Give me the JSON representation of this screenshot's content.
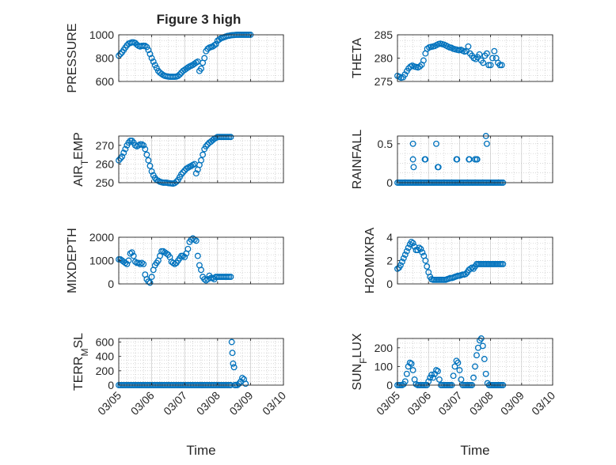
{
  "figure": {
    "title": "Figure 3 high",
    "accent_color": "#0072BD",
    "axis_color": "#262626",
    "grid_color": "#bdbdbd"
  },
  "chart_data": [
    {
      "id": "pressure",
      "type": "scatter",
      "ylabel": "PRESSURE",
      "ylim": [
        600,
        1000
      ],
      "yticks": [
        600,
        800,
        1000
      ],
      "xlim": [
        0,
        5
      ],
      "xticklabels": [],
      "grid": true,
      "x": [
        0.0,
        0.05,
        0.1,
        0.15,
        0.2,
        0.25,
        0.3,
        0.35,
        0.4,
        0.45,
        0.5,
        0.55,
        0.6,
        0.65,
        0.7,
        0.75,
        0.8,
        0.85,
        0.9,
        0.95,
        1.0,
        1.05,
        1.1,
        1.15,
        1.2,
        1.25,
        1.3,
        1.35,
        1.4,
        1.45,
        1.5,
        1.55,
        1.6,
        1.65,
        1.7,
        1.75,
        1.8,
        1.85,
        1.9,
        1.95,
        2.0,
        2.05,
        2.1,
        2.15,
        2.2,
        2.25,
        2.3,
        2.35,
        2.4,
        2.45,
        2.5,
        2.55,
        2.6,
        2.65,
        2.7,
        2.75,
        2.8,
        2.85,
        2.9,
        2.95,
        3.0,
        3.05,
        3.1,
        3.15,
        3.2,
        3.25,
        3.3,
        3.35,
        3.4,
        3.45,
        3.5,
        3.55,
        3.6,
        3.65,
        3.7,
        3.75,
        3.8,
        3.85,
        3.9,
        3.95,
        4.0
      ],
      "y": [
        820,
        835,
        850,
        870,
        890,
        910,
        925,
        930,
        935,
        935,
        930,
        915,
        905,
        900,
        905,
        905,
        905,
        895,
        870,
        835,
        800,
        770,
        740,
        715,
        690,
        675,
        665,
        655,
        648,
        645,
        642,
        640,
        640,
        640,
        640,
        642,
        648,
        660,
        675,
        690,
        700,
        710,
        720,
        728,
        735,
        742,
        752,
        762,
        770,
        690,
        710,
        760,
        800,
        860,
        880,
        890,
        895,
        900,
        910,
        920,
        950,
        960,
        970,
        975,
        980,
        985,
        990,
        992,
        995,
        997,
        998,
        999,
        1000,
        1000,
        1000,
        1000,
        1000,
        1000,
        1000,
        1000,
        1000
      ],
      "x_end": 3.4
    },
    {
      "id": "theta",
      "type": "scatter",
      "ylabel": "THETA",
      "ylim": [
        275,
        285
      ],
      "yticks": [
        275,
        280,
        285
      ],
      "xlim": [
        0,
        5
      ],
      "xticklabels": [],
      "grid": true,
      "x": [
        0.0,
        0.06,
        0.12,
        0.18,
        0.24,
        0.3,
        0.36,
        0.42,
        0.48,
        0.54,
        0.6,
        0.66,
        0.72,
        0.78,
        0.84,
        0.9,
        0.96,
        1.02,
        1.08,
        1.14,
        1.2,
        1.26,
        1.32,
        1.38,
        1.44,
        1.5,
        1.56,
        1.62,
        1.68,
        1.74,
        1.8,
        1.86,
        1.92,
        1.98,
        2.04,
        2.1,
        2.16,
        2.22,
        2.28,
        2.34,
        2.4,
        2.46,
        2.52,
        2.58,
        2.64,
        2.7,
        2.76,
        2.82,
        2.88,
        2.94,
        3.0,
        3.06,
        3.12,
        3.18,
        3.24,
        3.3,
        3.36
      ],
      "y": [
        276.2,
        276.0,
        275.8,
        275.9,
        276.5,
        277.2,
        277.8,
        278.2,
        278.4,
        278.2,
        278.1,
        278.0,
        278.2,
        278.6,
        279.5,
        281.0,
        282.0,
        282.3,
        282.4,
        282.5,
        282.6,
        282.8,
        283.0,
        283.1,
        283.0,
        282.9,
        282.7,
        282.5,
        282.3,
        282.2,
        282.0,
        281.9,
        281.8,
        281.7,
        281.8,
        281.6,
        281.4,
        281.5,
        282.5,
        281.0,
        280.5,
        280.0,
        279.8,
        280.2,
        280.8,
        279.5,
        279.0,
        280.5,
        281.0,
        278.5,
        278.5,
        280.0,
        281.5,
        280.0,
        279.0,
        278.5,
        278.5
      ],
      "x_end": 3.4
    },
    {
      "id": "air_temp",
      "type": "scatter",
      "ylabel_main": "AIR",
      "ylabel_sub": "T",
      "ylabel_rest": "EMP",
      "ylim": [
        250,
        275
      ],
      "yticks": [
        250,
        260,
        270
      ],
      "xlim": [
        0,
        5
      ],
      "xticklabels": [],
      "grid": true,
      "x": [
        0.0,
        0.05,
        0.1,
        0.15,
        0.2,
        0.25,
        0.3,
        0.35,
        0.4,
        0.45,
        0.5,
        0.55,
        0.6,
        0.65,
        0.7,
        0.75,
        0.8,
        0.85,
        0.9,
        0.95,
        1.0,
        1.05,
        1.1,
        1.15,
        1.2,
        1.25,
        1.3,
        1.35,
        1.4,
        1.45,
        1.5,
        1.55,
        1.6,
        1.65,
        1.7,
        1.75,
        1.8,
        1.85,
        1.9,
        1.95,
        2.0,
        2.05,
        2.1,
        2.15,
        2.2,
        2.25,
        2.3,
        2.35,
        2.4,
        2.45,
        2.5,
        2.55,
        2.6,
        2.65,
        2.7,
        2.75,
        2.8,
        2.85,
        2.9,
        2.95,
        3.0,
        3.05,
        3.1,
        3.15,
        3.2,
        3.25,
        3.3,
        3.35,
        3.4
      ],
      "y": [
        262,
        263,
        264,
        266,
        268,
        270,
        271.5,
        272.5,
        272.5,
        271.5,
        270,
        269.5,
        270,
        270.5,
        270.5,
        270,
        268,
        265,
        262,
        259,
        256,
        254,
        252.5,
        251.5,
        251,
        250.5,
        250.2,
        250,
        250,
        250,
        249.8,
        249.7,
        249.6,
        249.5,
        249.8,
        250.5,
        251.5,
        253,
        254.5,
        255.5,
        256.5,
        257.5,
        258,
        258.5,
        259,
        259.5,
        260,
        255,
        257,
        259.5,
        262,
        265,
        268,
        269.5,
        270.5,
        271.5,
        272,
        272.8,
        273.5,
        274,
        274.5,
        274.5,
        274.5,
        274.5,
        274.5,
        274.5,
        274.5,
        274.5,
        274.5
      ],
      "x_end": 3.4
    },
    {
      "id": "rainfall",
      "type": "scatter",
      "ylabel": "RAINFALL",
      "ylim": [
        0,
        0.6
      ],
      "yticks": [
        0,
        0.5
      ],
      "xlim": [
        0,
        5
      ],
      "xticklabels": [],
      "grid": true,
      "x": [
        0.0,
        0.05,
        0.1,
        0.15,
        0.2,
        0.25,
        0.3,
        0.35,
        0.4,
        0.45,
        0.5,
        0.55,
        0.6,
        0.65,
        0.7,
        0.75,
        0.8,
        0.85,
        0.9,
        0.95,
        1.0,
        1.05,
        1.1,
        1.15,
        1.2,
        1.25,
        1.3,
        1.35,
        1.4,
        1.45,
        1.5,
        1.55,
        1.6,
        1.65,
        1.7,
        1.75,
        1.8,
        1.85,
        1.9,
        1.95,
        2.0,
        2.05,
        2.1,
        2.15,
        2.2,
        2.25,
        2.3,
        2.35,
        2.4,
        2.45,
        2.5,
        2.55,
        2.6,
        2.65,
        2.7,
        2.75,
        2.8,
        2.85,
        2.9,
        2.95,
        3.0,
        3.05,
        3.1,
        3.15,
        3.2,
        3.25,
        3.3,
        3.35,
        3.4,
        0.5,
        0.5,
        0.52,
        0.9,
        0.88,
        1.25,
        1.3,
        1.32,
        1.9,
        1.92,
        2.3,
        2.32,
        2.5,
        2.55,
        2.57,
        2.85,
        2.88
      ],
      "y": [
        0,
        0,
        0,
        0,
        0,
        0,
        0,
        0,
        0,
        0,
        0,
        0,
        0,
        0,
        0,
        0,
        0,
        0,
        0,
        0,
        0,
        0,
        0,
        0,
        0,
        0,
        0,
        0,
        0,
        0,
        0,
        0,
        0,
        0,
        0,
        0,
        0,
        0,
        0,
        0,
        0,
        0,
        0,
        0,
        0,
        0,
        0,
        0,
        0,
        0,
        0,
        0,
        0,
        0,
        0,
        0,
        0,
        0,
        0,
        0,
        0,
        0,
        0,
        0,
        0,
        0,
        0,
        0,
        0,
        0.5,
        0.3,
        0.2,
        0.3,
        0.3,
        0.5,
        0.2,
        0.2,
        0.3,
        0.3,
        0.3,
        0.3,
        0.3,
        0.3,
        0.3,
        0.6,
        0.5
      ],
      "x_end": 3.4
    },
    {
      "id": "mixdepth",
      "type": "scatter",
      "ylabel": "MIXDEPTH",
      "ylim": [
        0,
        2000
      ],
      "yticks": [
        0,
        1000,
        2000
      ],
      "xlim": [
        0,
        5
      ],
      "xticklabels": [],
      "grid": true,
      "x": [
        0.0,
        0.05,
        0.1,
        0.15,
        0.2,
        0.25,
        0.3,
        0.35,
        0.4,
        0.45,
        0.5,
        0.55,
        0.6,
        0.65,
        0.7,
        0.75,
        0.8,
        0.85,
        0.9,
        0.95,
        1.0,
        1.05,
        1.1,
        1.15,
        1.2,
        1.25,
        1.3,
        1.35,
        1.4,
        1.45,
        1.5,
        1.55,
        1.6,
        1.65,
        1.7,
        1.75,
        1.8,
        1.85,
        1.9,
        1.95,
        2.0,
        2.05,
        2.1,
        2.15,
        2.2,
        2.25,
        2.3,
        2.35,
        2.4,
        2.45,
        2.5,
        2.55,
        2.6,
        2.65,
        2.7,
        2.75,
        2.8,
        2.85,
        2.9,
        2.95,
        3.0,
        3.05,
        3.1,
        3.15,
        3.2,
        3.25,
        3.3,
        3.35,
        3.4
      ],
      "y": [
        1050,
        1050,
        1000,
        950,
        900,
        850,
        1000,
        1300,
        1350,
        1200,
        950,
        900,
        900,
        850,
        900,
        850,
        400,
        200,
        100,
        50,
        300,
        600,
        800,
        900,
        1000,
        1200,
        1400,
        1400,
        1350,
        1300,
        1250,
        1150,
        950,
        900,
        850,
        900,
        1000,
        1100,
        1200,
        1200,
        1150,
        1300,
        1500,
        1800,
        1900,
        1950,
        1900,
        1850,
        1200,
        800,
        600,
        300,
        200,
        150,
        200,
        350,
        250,
        250,
        200,
        300,
        300,
        300,
        300,
        300,
        300,
        300,
        300,
        300,
        300
      ],
      "x_end": 3.4
    },
    {
      "id": "h2omixra",
      "type": "scatter",
      "ylabel": "H2OMIXRA",
      "ylim": [
        0,
        4
      ],
      "yticks": [
        0,
        2,
        4
      ],
      "xlim": [
        0,
        5
      ],
      "xticklabels": [],
      "grid": true,
      "x": [
        0.0,
        0.05,
        0.1,
        0.15,
        0.2,
        0.25,
        0.3,
        0.35,
        0.4,
        0.45,
        0.5,
        0.55,
        0.6,
        0.65,
        0.7,
        0.75,
        0.8,
        0.85,
        0.9,
        0.95,
        1.0,
        1.05,
        1.1,
        1.15,
        1.2,
        1.25,
        1.3,
        1.35,
        1.4,
        1.45,
        1.5,
        1.55,
        1.6,
        1.65,
        1.7,
        1.75,
        1.8,
        1.85,
        1.9,
        1.95,
        2.0,
        2.05,
        2.1,
        2.15,
        2.2,
        2.25,
        2.3,
        2.35,
        2.4,
        2.45,
        2.5,
        2.55,
        2.6,
        2.65,
        2.7,
        2.75,
        2.8,
        2.85,
        2.9,
        2.95,
        3.0,
        3.05,
        3.1,
        3.15,
        3.2,
        3.25,
        3.3,
        3.35,
        3.4
      ],
      "y": [
        1.3,
        1.4,
        1.6,
        1.9,
        2.2,
        2.5,
        2.8,
        3.1,
        3.4,
        3.6,
        3.5,
        3.2,
        2.9,
        2.9,
        3.1,
        3.0,
        2.7,
        2.4,
        2.0,
        1.5,
        1.0,
        0.6,
        0.4,
        0.35,
        0.35,
        0.35,
        0.35,
        0.35,
        0.35,
        0.35,
        0.35,
        0.35,
        0.4,
        0.45,
        0.5,
        0.5,
        0.55,
        0.6,
        0.65,
        0.7,
        0.7,
        0.75,
        0.8,
        0.8,
        0.85,
        1.0,
        1.2,
        1.3,
        1.4,
        1.3,
        1.5,
        1.7,
        1.7,
        1.7,
        1.7,
        1.7,
        1.7,
        1.7,
        1.7,
        1.7,
        1.7,
        1.7,
        1.7,
        1.7,
        1.7,
        1.7,
        1.7,
        1.7,
        1.7
      ],
      "x_end": 3.4
    },
    {
      "id": "terr_msl",
      "type": "scatter",
      "ylabel_main": "TERR",
      "ylabel_sub": "M",
      "ylabel_rest": "SL",
      "ylim": [
        0,
        650
      ],
      "yticks": [
        0,
        200,
        400,
        600
      ],
      "xlim": [
        0,
        5
      ],
      "xticklabels": [
        "03/05",
        "03/06",
        "03/07",
        "03/08",
        "03/09",
        "03/10"
      ],
      "xlabel": "Time",
      "grid": true,
      "x": [
        0.0,
        0.05,
        0.1,
        0.15,
        0.2,
        0.25,
        0.3,
        0.35,
        0.4,
        0.45,
        0.5,
        0.55,
        0.6,
        0.65,
        0.7,
        0.75,
        0.8,
        0.85,
        0.9,
        0.95,
        1.0,
        1.05,
        1.1,
        1.15,
        1.2,
        1.25,
        1.3,
        1.35,
        1.4,
        1.45,
        1.5,
        1.55,
        1.6,
        1.65,
        1.7,
        1.75,
        1.8,
        1.85,
        1.9,
        1.95,
        2.0,
        2.05,
        2.1,
        2.15,
        2.2,
        2.25,
        2.3,
        2.35,
        2.4,
        2.45,
        2.5,
        2.55,
        2.6,
        2.65,
        2.7,
        2.75,
        2.8,
        2.85,
        2.9,
        2.95,
        3.0,
        3.05,
        3.1,
        3.15,
        3.2,
        3.25,
        3.3,
        3.35,
        3.4,
        3.43,
        3.45,
        3.47,
        3.5,
        3.52,
        3.55,
        3.6,
        3.65,
        3.7,
        3.75,
        3.8,
        3.85
      ],
      "y": [
        0,
        0,
        0,
        0,
        0,
        0,
        0,
        0,
        0,
        0,
        0,
        0,
        0,
        0,
        0,
        0,
        0,
        0,
        0,
        0,
        0,
        0,
        0,
        0,
        0,
        0,
        0,
        0,
        0,
        0,
        0,
        0,
        0,
        0,
        0,
        0,
        0,
        0,
        0,
        0,
        0,
        0,
        0,
        0,
        0,
        0,
        0,
        0,
        0,
        0,
        0,
        0,
        0,
        0,
        0,
        0,
        0,
        0,
        0,
        0,
        0,
        0,
        0,
        0,
        0,
        0,
        0,
        0,
        0,
        600,
        450,
        300,
        250,
        0,
        0,
        0,
        20,
        50,
        100,
        80,
        20
      ],
      "x_end": 3.9
    },
    {
      "id": "sun_flux",
      "type": "scatter",
      "ylabel_main": "SUN",
      "ylabel_sub": "F",
      "ylabel_rest": "LUX",
      "ylim": [
        0,
        250
      ],
      "yticks": [
        0,
        100,
        200
      ],
      "xlim": [
        0,
        5
      ],
      "xticklabels": [
        "03/05",
        "03/06",
        "03/07",
        "03/08",
        "03/09",
        "03/10"
      ],
      "xlabel": "Time",
      "grid": true,
      "x": [
        0.0,
        0.05,
        0.1,
        0.15,
        0.2,
        0.25,
        0.3,
        0.35,
        0.4,
        0.45,
        0.5,
        0.55,
        0.6,
        0.65,
        0.7,
        0.75,
        0.8,
        0.85,
        0.9,
        0.95,
        1.0,
        1.05,
        1.1,
        1.15,
        1.2,
        1.25,
        1.3,
        1.35,
        1.4,
        1.45,
        1.5,
        1.55,
        1.6,
        1.65,
        1.7,
        1.75,
        1.8,
        1.85,
        1.9,
        1.95,
        2.0,
        2.05,
        2.1,
        2.15,
        2.2,
        2.25,
        2.3,
        2.35,
        2.4,
        2.45,
        2.5,
        2.55,
        2.6,
        2.65,
        2.7,
        2.75,
        2.8,
        2.85,
        2.9,
        2.95,
        3.0,
        3.05,
        3.1,
        3.15,
        3.2,
        3.25,
        3.3,
        3.35,
        3.4
      ],
      "y": [
        0,
        0,
        0,
        0,
        5,
        20,
        60,
        100,
        120,
        115,
        80,
        30,
        5,
        0,
        0,
        0,
        0,
        0,
        0,
        0,
        20,
        40,
        55,
        40,
        60,
        80,
        75,
        30,
        0,
        0,
        0,
        0,
        0,
        0,
        0,
        0,
        50,
        100,
        130,
        120,
        80,
        30,
        0,
        0,
        0,
        0,
        0,
        0,
        0,
        40,
        100,
        160,
        200,
        240,
        250,
        210,
        140,
        60,
        10,
        0,
        0,
        0,
        0,
        0,
        0,
        0,
        0,
        0,
        0
      ],
      "x_end": 3.4
    }
  ]
}
